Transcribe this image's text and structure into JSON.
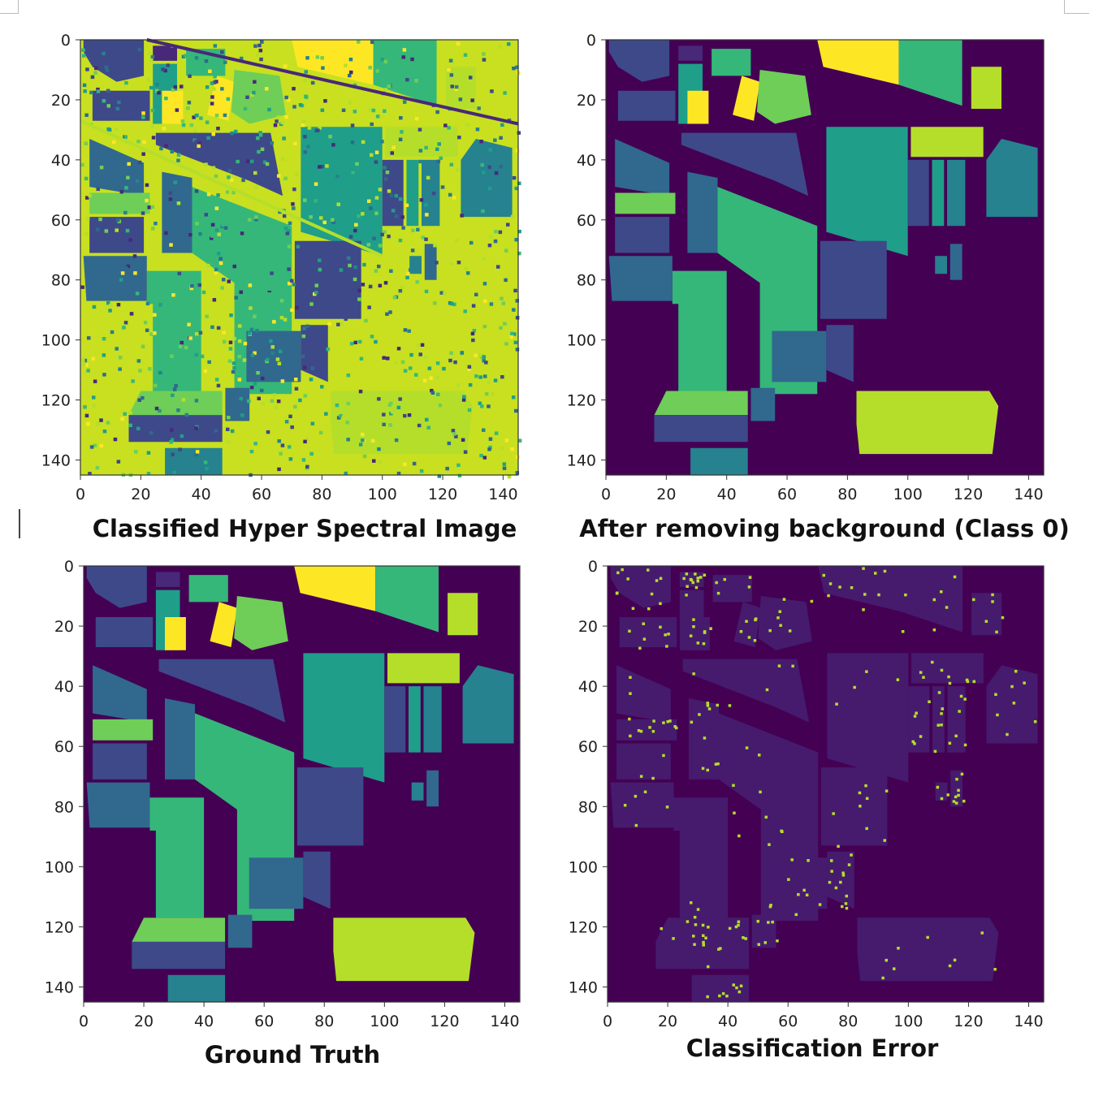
{
  "chart_data": [
    {
      "type": "heatmap",
      "title": "Classified Hyper Spectral Image",
      "xticks": [
        "0",
        "20",
        "40",
        "60",
        "80",
        "100",
        "120",
        "140"
      ],
      "yticks": [
        "0",
        "20",
        "40",
        "60",
        "80",
        "100",
        "120",
        "140"
      ],
      "xlim": [
        0,
        145
      ],
      "ylim": [
        145,
        0
      ],
      "colormap": "viridis",
      "background": "#c8e020"
    },
    {
      "type": "heatmap",
      "title": "After removing background  (Class 0)",
      "xticks": [
        "0",
        "20",
        "40",
        "60",
        "80",
        "100",
        "120",
        "140"
      ],
      "yticks": [
        "0",
        "20",
        "40",
        "60",
        "80",
        "100",
        "120",
        "140"
      ],
      "xlim": [
        0,
        145
      ],
      "ylim": [
        145,
        0
      ],
      "colormap": "viridis",
      "background": "#440154"
    },
    {
      "type": "heatmap",
      "title": "Ground Truth",
      "xticks": [
        "0",
        "20",
        "40",
        "60",
        "80",
        "100",
        "120",
        "140"
      ],
      "yticks": [
        "0",
        "20",
        "40",
        "60",
        "80",
        "100",
        "120",
        "140"
      ],
      "xlim": [
        0,
        145
      ],
      "ylim": [
        145,
        0
      ],
      "colormap": "viridis",
      "background": "#440154"
    },
    {
      "type": "heatmap",
      "title": "Classification Error",
      "xticks": [
        "0",
        "20",
        "40",
        "60",
        "80",
        "100",
        "120",
        "140"
      ],
      "yticks": [
        "0",
        "20",
        "40",
        "60",
        "80",
        "100",
        "120",
        "140"
      ],
      "xlim": [
        0,
        145
      ],
      "ylim": [
        145,
        0
      ],
      "colormap": "viridis",
      "background": "#440154"
    }
  ],
  "colors": {
    "background_class": "#440154",
    "palette": [
      "#482878",
      "#3e4989",
      "#31688e",
      "#26828e",
      "#1f9e89",
      "#35b779",
      "#6ece58",
      "#b5de2b",
      "#fde725"
    ],
    "error_point": "#b5de2b",
    "error_field": "#461b6e"
  }
}
